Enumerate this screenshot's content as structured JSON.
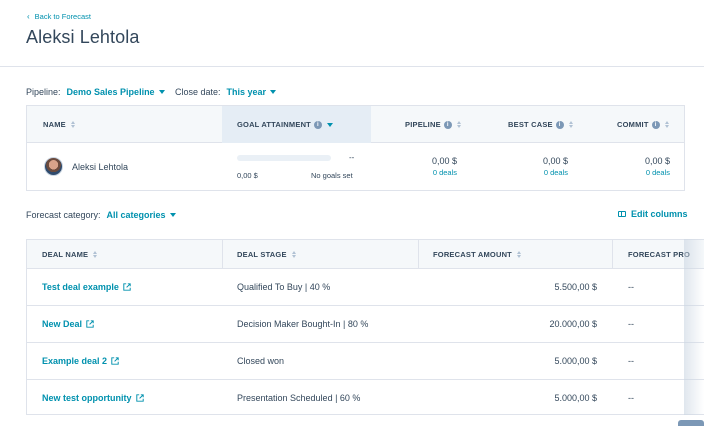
{
  "back_link": "Back to Forecast",
  "title": "Aleksi Lehtola",
  "filters": {
    "pipeline_label": "Pipeline:",
    "pipeline_value": "Demo Sales Pipeline",
    "close_date_label": "Close date:",
    "close_date_value": "This year"
  },
  "rep_table": {
    "headers": {
      "name": "NAME",
      "goal": "GOAL ATTAINMENT",
      "pipeline": "PIPELINE",
      "best_case": "BEST CASE",
      "commit": "COMMIT"
    },
    "row": {
      "name": "Aleksi Lehtola",
      "goal_dash": "--",
      "goal_amount": "0,00 $",
      "goal_note": "No goals set",
      "pipeline_amount": "0,00 $",
      "pipeline_deals": "0 deals",
      "best_case_amount": "0,00 $",
      "best_case_deals": "0 deals",
      "commit_amount": "0,00 $",
      "commit_deals": "0 deals"
    }
  },
  "category": {
    "label": "Forecast category:",
    "value": "All categories",
    "edit_columns": "Edit columns"
  },
  "deal_table": {
    "headers": {
      "deal_name": "DEAL NAME",
      "deal_stage": "DEAL STAGE",
      "forecast_amount": "FORECAST AMOUNT",
      "forecast_probability": "FORECAST PRO"
    },
    "rows": [
      {
        "name": "Test deal example",
        "stage": "Qualified To Buy | 40 %",
        "amount": "5.500,00 $",
        "probability": "--"
      },
      {
        "name": "New Deal",
        "stage": "Decision Maker Bought-In | 80 %",
        "amount": "20.000,00 $",
        "probability": "--"
      },
      {
        "name": "Example deal 2",
        "stage": "Closed won",
        "amount": "5.000,00 $",
        "probability": "--"
      },
      {
        "name": "New test opportunity",
        "stage": "Presentation Scheduled | 60 %",
        "amount": "5.000,00 $",
        "probability": "--"
      }
    ]
  },
  "icons": {
    "info": "i"
  },
  "colors": {
    "accent": "#0091ae",
    "text": "#33475b",
    "border": "#dfe3eb",
    "header_bg": "#f5f8fa"
  }
}
